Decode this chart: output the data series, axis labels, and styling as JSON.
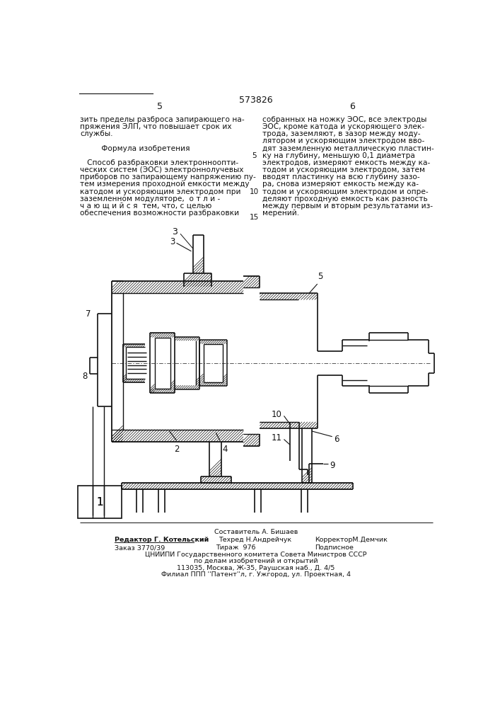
{
  "patent_number": "573826",
  "page_left": "5",
  "page_right": "6",
  "background_color": "#ffffff",
  "text_color": "#000000",
  "left_column_text": [
    "зить пределы разброса запирающего на-",
    "пряжения ЭЛП, что повышает срок их",
    "службы.",
    "",
    "         Формула изобретения",
    "",
    "   Способ разбраковки электронноопти-",
    "ческих систем (ЭОС) электроннолучевых",
    "приборов по запирающему напряжению пу-",
    "тем измерения проходной емкости между",
    "катодом и ускоряющим электродом при",
    "заземленном модуляторе,  о т л и -",
    "ч а ю щ и й с я  тем, что, с целью",
    "обеспечения возможности разбраковки"
  ],
  "right_column_text": [
    "собранных на ножку ЭОС, все электроды",
    "ЭОС, кроме катода и ускоряющего элек-",
    "трода, заземляют, в зазор между моду-",
    "лятором и ускоряющим электродом вво-",
    "дят заземленную металлическую пластин-",
    "ку на глубину, меньшую 0,1 диаметра",
    "электродов, измеряют емкость между ка-",
    "тодом и ускоряющим электродом, затем",
    "вводят пластинку на всю глубину зазо-",
    "ра, снова измеряют емкость между ка-",
    "тодом и ускоряющим электродом и опре-",
    "деляют проходную емкость как разность",
    "между первым и вторым результатами из-",
    "мерений."
  ],
  "footer_composer": "Составитель А. Бишаев",
  "footer_editor": "Редактор Г. Котельский",
  "footer_tech": "Техред Н.Андрейчук",
  "footer_corr": "КорректорМ.Демчик",
  "footer_order": "Заказ 3770/39",
  "footer_tirazh": "Тираж  976",
  "footer_podp": "Подписное",
  "footer_org": "ЦНИИПИ Государственного комитета Совета Министров СССР",
  "footer_dept": "по делам изобретений и открытий",
  "footer_addr": "113035, Москва, Ж-35, Раушская наб., Д. 4/5",
  "footer_branch": "Филиал ППП ''Патент''л, г. Ужгород, ул. Проектная, 4"
}
